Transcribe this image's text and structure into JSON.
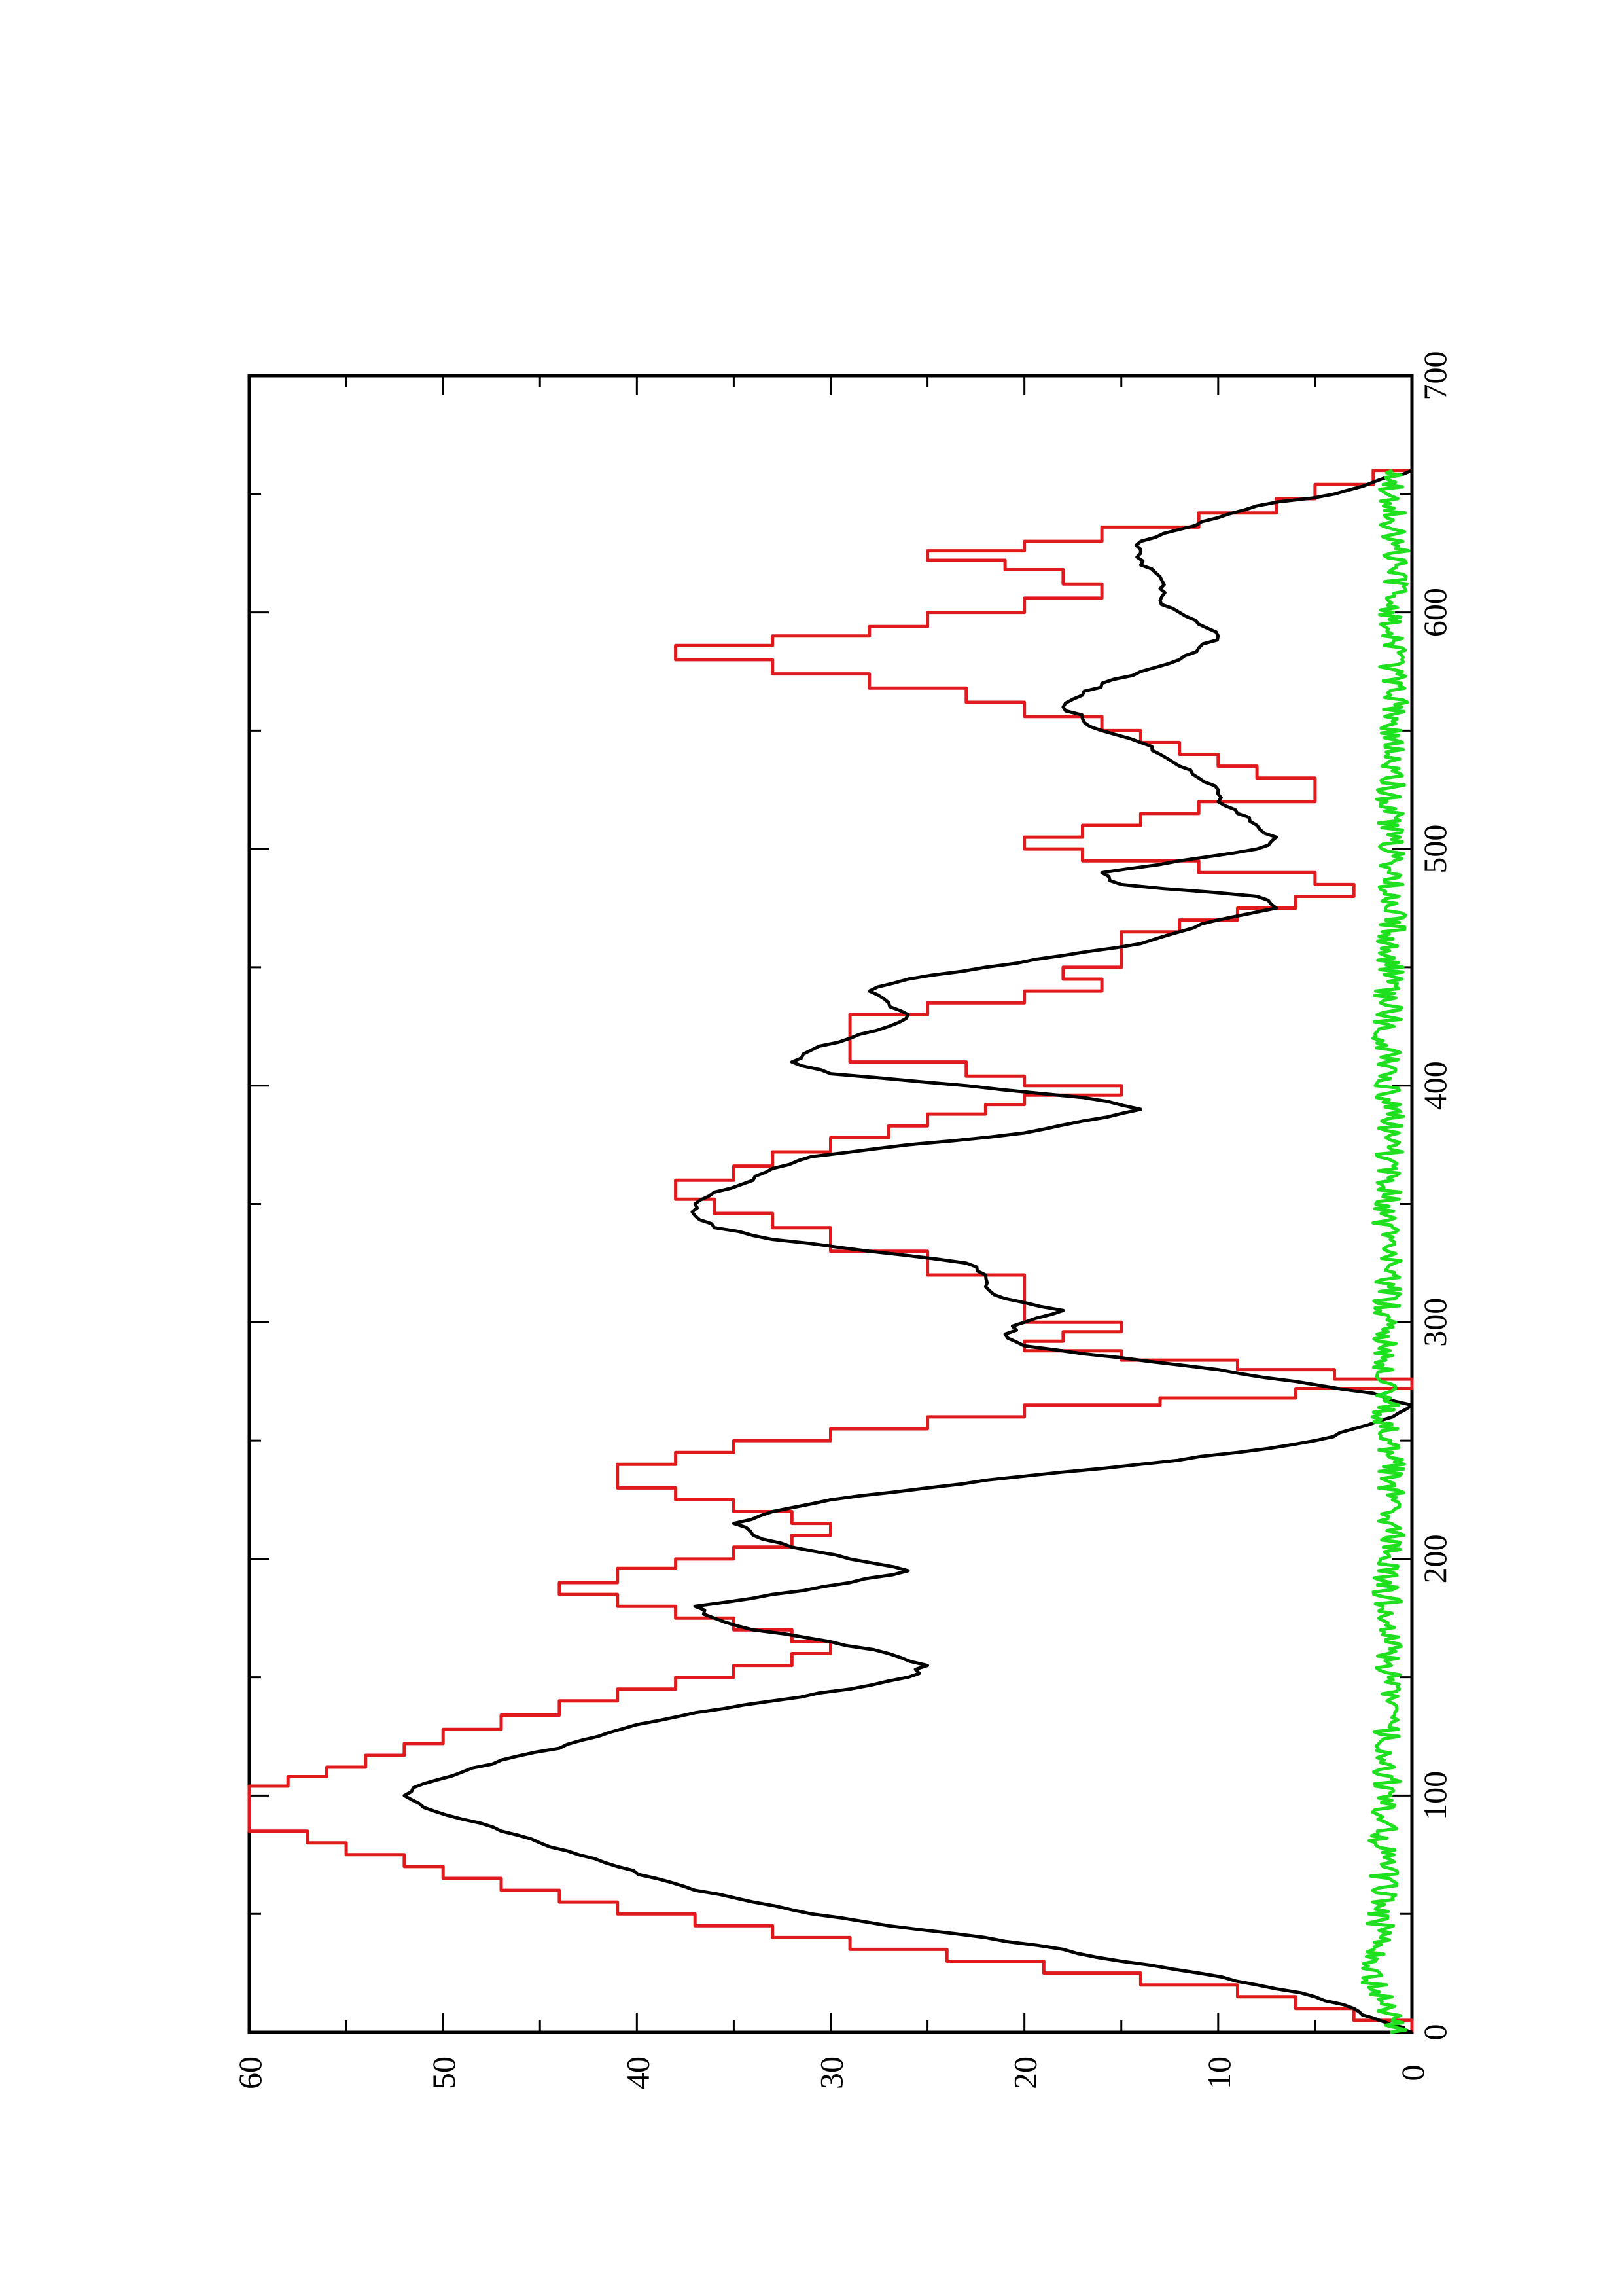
{
  "chart_data": {
    "type": "line",
    "orientation": "rotated 90 degrees counter-clockwise",
    "title": "",
    "xlabel": "",
    "ylabel": "",
    "xlim": [
      0,
      700
    ],
    "ylim": [
      0,
      60
    ],
    "x_ticks": [
      "0",
      "100",
      "200",
      "300",
      "400",
      "500",
      "600",
      "700"
    ],
    "x_minor_ticks": [
      50,
      150,
      250,
      350,
      450,
      550,
      650
    ],
    "y_ticks": [
      "0",
      "10",
      "20",
      "30",
      "40",
      "50",
      "60"
    ],
    "y_minor_ticks": [
      5,
      15,
      25,
      35,
      45,
      55
    ],
    "grid": false,
    "legend": "none",
    "series": [
      {
        "color": "#e0191c",
        "shape": "step",
        "x": [
          0,
          5,
          10,
          15,
          20,
          25,
          30,
          35,
          40,
          45,
          50,
          55,
          60,
          65,
          70,
          75,
          80,
          85,
          90,
          95,
          100,
          104,
          108,
          112,
          117,
          122,
          128,
          134,
          140,
          145,
          150,
          155,
          160,
          165,
          170,
          175,
          180,
          185,
          190,
          196,
          200,
          205,
          210,
          215,
          220,
          225,
          230,
          235,
          240,
          245,
          250,
          255,
          260,
          265,
          268,
          272,
          276,
          280,
          284,
          288,
          292,
          296,
          300,
          305,
          310,
          320,
          330,
          340,
          346,
          352,
          360,
          366,
          372,
          378,
          383,
          388,
          392,
          396,
          400,
          404,
          410,
          420,
          430,
          435,
          440,
          445,
          450,
          460,
          465,
          470,
          475,
          480,
          485,
          490,
          495,
          500,
          505,
          510,
          515,
          520,
          525,
          530,
          535,
          540,
          545,
          550,
          556,
          562,
          568,
          574,
          580,
          586,
          590,
          594,
          600,
          606,
          612,
          618,
          622,
          626,
          630,
          636,
          642,
          648,
          654,
          660
        ],
        "values": [
          0,
          3,
          6,
          9,
          14,
          19,
          24,
          29,
          33,
          37,
          41,
          44,
          47,
          50,
          52,
          55,
          57,
          60,
          60,
          60,
          60,
          58,
          56,
          54,
          52,
          50,
          47,
          44,
          41,
          38,
          35,
          32,
          30,
          32,
          35,
          38,
          41,
          44,
          41,
          38,
          35,
          32,
          30,
          32,
          35,
          38,
          41,
          41,
          38,
          35,
          30,
          25,
          20,
          13,
          6,
          0,
          4,
          9,
          15,
          20,
          18,
          15,
          20,
          20,
          20,
          25,
          30,
          33,
          36,
          38,
          35,
          33,
          30,
          27,
          25,
          22,
          20,
          15,
          20,
          23,
          29,
          29,
          25,
          20,
          16,
          18,
          15,
          15,
          12,
          9,
          6,
          3,
          5,
          11,
          17,
          20,
          17,
          14,
          11,
          5,
          5,
          8,
          10,
          12,
          14,
          16,
          20,
          23,
          28,
          33,
          38,
          33,
          28,
          25,
          20,
          16,
          18,
          21,
          25,
          20,
          16,
          11,
          7,
          5,
          2,
          0
        ]
      },
      {
        "color": "#000000",
        "shape": "smooth",
        "x": [
          0,
          3,
          6,
          10,
          15,
          20,
          25,
          30,
          35,
          40,
          45,
          50,
          55,
          60,
          65,
          70,
          75,
          80,
          85,
          90,
          95,
          100,
          105,
          110,
          115,
          120,
          125,
          130,
          135,
          140,
          145,
          150,
          155,
          160,
          165,
          170,
          175,
          180,
          185,
          190,
          195,
          200,
          205,
          210,
          215,
          220,
          225,
          230,
          235,
          240,
          245,
          250,
          255,
          260,
          265,
          270,
          275,
          280,
          285,
          290,
          295,
          300,
          305,
          310,
          315,
          320,
          325,
          330,
          335,
          340,
          345,
          350,
          355,
          360,
          365,
          370,
          375,
          380,
          385,
          390,
          395,
          400,
          405,
          410,
          415,
          420,
          425,
          430,
          435,
          440,
          445,
          450,
          455,
          460,
          465,
          470,
          475,
          480,
          485,
          490,
          495,
          500,
          505,
          510,
          515,
          520,
          525,
          530,
          535,
          540,
          545,
          550,
          555,
          560,
          565,
          570,
          575,
          580,
          585,
          590,
          595,
          600,
          605,
          610,
          615,
          620,
          625,
          630,
          635,
          640,
          645,
          650,
          655,
          660
        ],
        "values": [
          0,
          1,
          2,
          3,
          5,
          8,
          11,
          15,
          18,
          22,
          27,
          31,
          34,
          37,
          39,
          41,
          43,
          45,
          47,
          49,
          51,
          52,
          51,
          49,
          47,
          44,
          42,
          40,
          37,
          33,
          29,
          26,
          25,
          27,
          30,
          34,
          36,
          37,
          33,
          29,
          26,
          29,
          32,
          34,
          35,
          33,
          30,
          25,
          20,
          14,
          9,
          5,
          3,
          1,
          0,
          2,
          6,
          10,
          15,
          20,
          21,
          20,
          18,
          21,
          22,
          22,
          23,
          28,
          33,
          36,
          37,
          37,
          36,
          34,
          33,
          31,
          26,
          20,
          17,
          14,
          17,
          23,
          30,
          32,
          31,
          29,
          27,
          26,
          27,
          28,
          26,
          22,
          18,
          14,
          12,
          10,
          7,
          8,
          15,
          16,
          12,
          8,
          7,
          8,
          9,
          10,
          10,
          11,
          12,
          13,
          14,
          16,
          17,
          18,
          17,
          16,
          14,
          12,
          11,
          10,
          11,
          12,
          13,
          13,
          13,
          14,
          14,
          14,
          12,
          10,
          8,
          4,
          2,
          0
        ]
      },
      {
        "color": "#1ee01e",
        "shape": "noisy",
        "x": [
          0,
          10,
          20,
          30,
          40,
          50,
          60,
          70,
          80,
          90,
          100,
          110,
          120,
          130,
          140,
          150,
          160,
          170,
          180,
          190,
          200,
          210,
          220,
          230,
          240,
          250,
          260,
          270,
          280,
          290,
          300,
          310,
          320,
          330,
          340,
          350,
          360,
          370,
          380,
          390,
          400,
          410,
          420,
          430,
          440,
          450,
          460,
          470,
          480,
          490,
          500,
          510,
          520,
          530,
          540,
          550,
          560,
          570,
          580,
          590,
          600,
          610,
          620,
          630,
          640,
          650,
          660
        ],
        "values": [
          0.8,
          1.5,
          1.9,
          2.0,
          1.7,
          1.6,
          1.5,
          1.4,
          1.6,
          1.4,
          1.3,
          1.3,
          1.4,
          1.2,
          1.3,
          1.2,
          1.2,
          1.1,
          1.2,
          1.4,
          1.2,
          1.1,
          1.2,
          1.1,
          1.0,
          1.2,
          1.4,
          1.3,
          1.5,
          1.4,
          1.3,
          1.3,
          1.2,
          1.2,
          1.4,
          1.2,
          1.2,
          1.2,
          1.1,
          1.1,
          1.3,
          1.2,
          1.4,
          1.2,
          1.3,
          1.1,
          1.1,
          1.0,
          1.0,
          1.1,
          1.1,
          1.1,
          1.2,
          1.0,
          1.0,
          1.0,
          0.9,
          1.0,
          1.0,
          0.9,
          1.0,
          0.9,
          0.8,
          0.9,
          1.0,
          1.1,
          1.0
        ]
      }
    ]
  }
}
